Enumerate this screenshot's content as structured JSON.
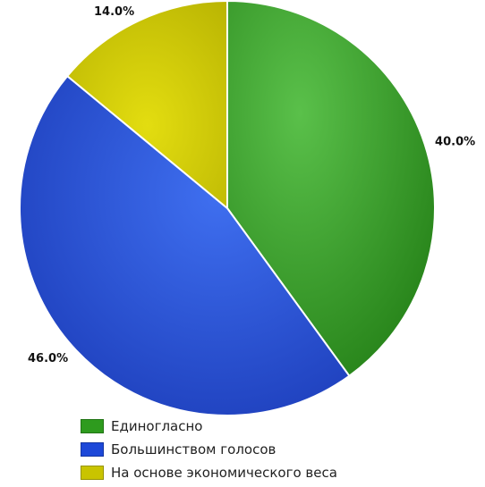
{
  "chart_data": {
    "type": "pie",
    "categories": [
      "Единогласно",
      "Большинством голосов",
      "На основе экономического веса"
    ],
    "values": [
      40.0,
      46.0,
      14.0
    ],
    "value_labels": [
      "40.0%",
      "46.0%",
      "14.0%"
    ],
    "colors": [
      "#2e9b1e",
      "#1d48d8",
      "#c9c400"
    ],
    "start_angle_deg": 0,
    "direction": "clockwise",
    "legend": "bottom"
  }
}
